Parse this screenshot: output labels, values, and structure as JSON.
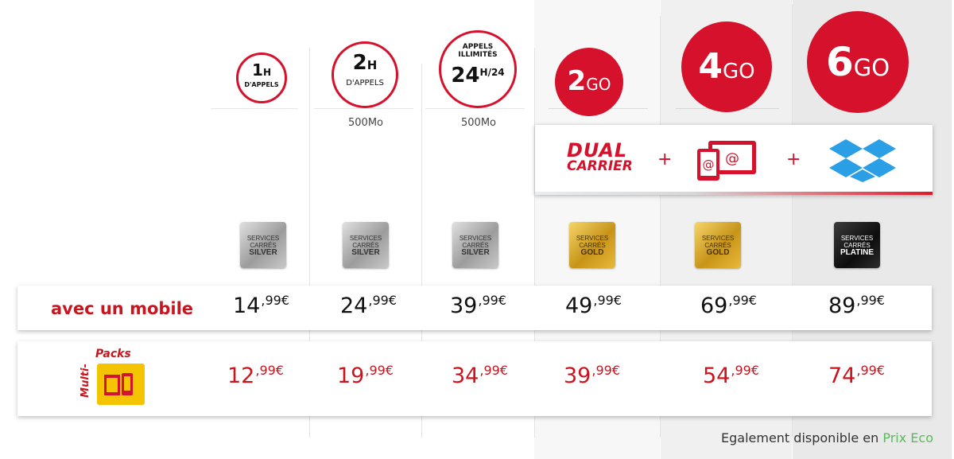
{
  "plans": [
    {
      "id": "1h",
      "big": "1",
      "unit": "H",
      "sub": "D'APPELS",
      "data": "",
      "badge_top": "SERVICES",
      "badge_mid": "CARRÉS",
      "badge_tier": "SILVER",
      "price_mobile": {
        "int": "14",
        "dec": ",99€"
      },
      "price_multi": {
        "int": "12",
        "dec": ",99€"
      }
    },
    {
      "id": "2h",
      "big": "2",
      "unit": "H",
      "sub": "D'APPELS",
      "data": "500Mo",
      "badge_top": "SERVICES",
      "badge_mid": "CARRÉS",
      "badge_tier": "SILVER",
      "price_mobile": {
        "int": "24",
        "dec": ",99€"
      },
      "price_multi": {
        "int": "19",
        "dec": ",99€"
      }
    },
    {
      "id": "illimites",
      "top1": "APPELS",
      "top2": "ILLIMITÉS",
      "big": "24",
      "unit": "H/24",
      "data": "500Mo",
      "badge_top": "SERVICES",
      "badge_mid": "CARRÉS",
      "badge_tier": "SILVER",
      "price_mobile": {
        "int": "39",
        "dec": ",99€"
      },
      "price_multi": {
        "int": "34",
        "dec": ",99€"
      }
    },
    {
      "id": "2go",
      "big": "2",
      "unit": "GO",
      "badge_top": "SERVICES",
      "badge_mid": "CARRÉS",
      "badge_tier": "GOLD",
      "price_mobile": {
        "int": "49",
        "dec": ",99€"
      },
      "price_multi": {
        "int": "39",
        "dec": ",99€"
      }
    },
    {
      "id": "4go",
      "big": "4",
      "unit": "GO",
      "badge_top": "SERVICES",
      "badge_mid": "CARRÉS",
      "badge_tier": "GOLD",
      "price_mobile": {
        "int": "69",
        "dec": ",99€"
      },
      "price_multi": {
        "int": "54",
        "dec": ",99€"
      }
    },
    {
      "id": "6go",
      "big": "6",
      "unit": "GO",
      "badge_top": "SERVICES",
      "badge_mid": "CARRÉS",
      "badge_tier": "PLATINE",
      "price_mobile": {
        "int": "89",
        "dec": ",99€"
      },
      "price_multi": {
        "int": "74",
        "dec": ",99€"
      }
    }
  ],
  "features": {
    "dual_line1": "DUAL",
    "dual_line2": "CARRIER",
    "plus": "+"
  },
  "rows": {
    "mobile_label": "avec un mobile",
    "multi_line1": "Multi-",
    "multi_line2": "Packs"
  },
  "footer": {
    "text": "Egalement disponible en ",
    "link": "Prix Eco"
  },
  "colors": {
    "red": "#d6112b",
    "price_red": "#c8151e",
    "footer_link": "#5cb85c"
  }
}
